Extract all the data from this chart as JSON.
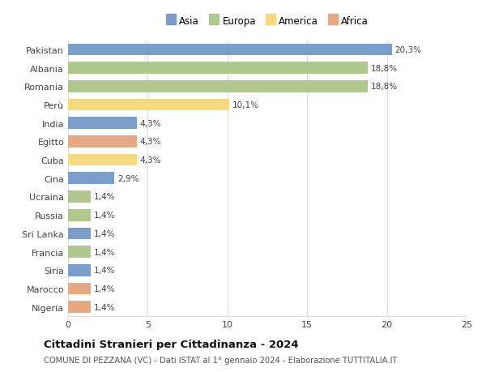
{
  "countries": [
    "Pakistan",
    "Albania",
    "Romania",
    "Perù",
    "India",
    "Egitto",
    "Cuba",
    "Cina",
    "Ucraina",
    "Russia",
    "Sri Lanka",
    "Francia",
    "Siria",
    "Marocco",
    "Nigeria"
  ],
  "values": [
    20.3,
    18.8,
    18.8,
    10.1,
    4.3,
    4.3,
    4.3,
    2.9,
    1.4,
    1.4,
    1.4,
    1.4,
    1.4,
    1.4,
    1.4
  ],
  "labels": [
    "20,3%",
    "18,8%",
    "18,8%",
    "10,1%",
    "4,3%",
    "4,3%",
    "4,3%",
    "2,9%",
    "1,4%",
    "1,4%",
    "1,4%",
    "1,4%",
    "1,4%",
    "1,4%",
    "1,4%"
  ],
  "colors": [
    "#7b9dc9",
    "#b0c88e",
    "#b0c88e",
    "#f5d97e",
    "#7b9dc9",
    "#e8a882",
    "#f5d97e",
    "#7b9dc9",
    "#b0c88e",
    "#b0c88e",
    "#7b9dc9",
    "#b0c88e",
    "#7b9dc9",
    "#e8a882",
    "#e8a882"
  ],
  "continents": [
    "Asia",
    "Europa",
    "America",
    "Africa"
  ],
  "continent_colors": [
    "#7b9dc9",
    "#b0c88e",
    "#f5d97e",
    "#e8a882"
  ],
  "title": "Cittadini Stranieri per Cittadinanza - 2024",
  "subtitle": "COMUNE DI PEZZANA (VC) - Dati ISTAT al 1° gennaio 2024 - Elaborazione TUTTITALIA.IT",
  "xlim": [
    0,
    25
  ],
  "xticks": [
    0,
    5,
    10,
    15,
    20,
    25
  ],
  "background_color": "#ffffff",
  "grid_color": "#dddddd",
  "bar_height": 0.65
}
